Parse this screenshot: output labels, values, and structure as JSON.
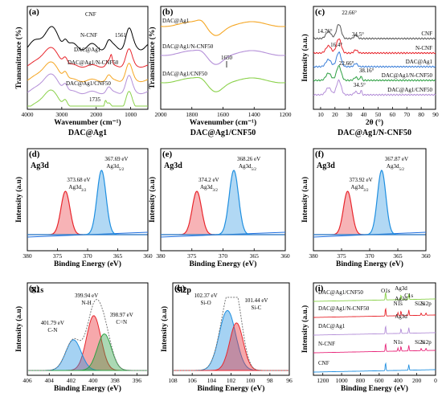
{
  "chart_data": [
    {
      "panel": "(a)",
      "type": "line",
      "title": "DAC@Ag1",
      "xlabel": "Wavenumber (cm⁻¹)",
      "ylabel": "Transmittance (%)",
      "xlim": [
        4000,
        500
      ],
      "x_ticks": [
        "4000",
        "3000",
        "2000",
        "1000"
      ],
      "series": [
        {
          "name": "CNF",
          "color": "#000000"
        },
        {
          "name": "N-CNF",
          "color": "#e8262d"
        },
        {
          "name": "DAC@Ag1",
          "color": "#f5a623"
        },
        {
          "name": "DAC@Ag1/N-CNF50",
          "color": "#b48fd8"
        },
        {
          "name": "DAC@Ag1/CNF50",
          "color": "#8ad14a"
        }
      ],
      "annotations": [
        "1561",
        "1735"
      ]
    },
    {
      "panel": "(b)",
      "type": "line",
      "title": "DAC@Ag1/CNF50",
      "xlabel": "Wavenumber (cm⁻¹)",
      "ylabel": "Transmittance (%)",
      "xlim": [
        2000,
        1200
      ],
      "x_ticks": [
        "2000",
        "1800",
        "1600",
        "1400",
        "1200"
      ],
      "series": [
        {
          "name": "DAC@Ag1",
          "color": "#f5a623"
        },
        {
          "name": "DAC@Ag1/N-CNF50",
          "color": "#b48fd8"
        },
        {
          "name": "DAC@Ag1/CNF50",
          "color": "#8ad14a"
        }
      ],
      "annotations": [
        "1650"
      ]
    },
    {
      "panel": "(c)",
      "type": "line",
      "title": "DAC@Ag1/N-CNF50",
      "xlabel": "2θ (°)",
      "ylabel": "Intensity (a.u.)",
      "xlim": [
        5,
        90
      ],
      "x_ticks": [
        "10",
        "20",
        "30",
        "40",
        "50",
        "60",
        "70",
        "80",
        "90"
      ],
      "series": [
        {
          "name": "CNF",
          "color": "#555555"
        },
        {
          "name": "N-CNF",
          "color": "#e8262d"
        },
        {
          "name": "DAC@Ag1",
          "color": "#3b7fd9"
        },
        {
          "name": "DAC@Ag1/N-CNF50",
          "color": "#2ea043"
        },
        {
          "name": "DAC@Ag1/CNF50",
          "color": "#b48fd8"
        }
      ],
      "annotations": [
        "22.66°",
        "14.76°",
        "34.5°",
        "16.4°",
        "22.66°",
        "38.16°",
        "34.5°"
      ]
    },
    {
      "panel": "(d)",
      "type": "line",
      "title": "Ag3d",
      "xlabel": "Binding Energy (eV)",
      "ylabel": "Intensity (a.u)",
      "xlim": [
        380,
        360
      ],
      "x_ticks": [
        "380",
        "375",
        "370",
        "365",
        "360"
      ],
      "peaks": [
        {
          "label": "373.68 eV",
          "name": "Ag3d",
          "sub": "3/2",
          "center": 373.68,
          "color": "#e8262d"
        },
        {
          "label": "367.69 eV",
          "name": "Ag3d",
          "sub": "5/2",
          "center": 367.69,
          "color": "#1f8fe0"
        }
      ]
    },
    {
      "panel": "(e)",
      "type": "line",
      "title": "Ag3d",
      "xlabel": "Binding Energy (eV)",
      "ylabel": "Intensity (a.u)",
      "xlim": [
        380,
        360
      ],
      "x_ticks": [
        "380",
        "375",
        "370",
        "365",
        "360"
      ],
      "peaks": [
        {
          "label": "374.2 eV",
          "name": "Ag3d",
          "sub": "3/2",
          "center": 374.2,
          "color": "#e8262d"
        },
        {
          "label": "368.26 eV",
          "name": "Ag3d",
          "sub": "5/2",
          "center": 368.26,
          "color": "#1f8fe0"
        }
      ]
    },
    {
      "panel": "(f)",
      "type": "line",
      "title": "Ag3d",
      "xlabel": "Binding Energy (eV)",
      "ylabel": "Intensity (a.u)",
      "xlim": [
        380,
        360
      ],
      "x_ticks": [
        "380",
        "375",
        "370",
        "365",
        "360"
      ],
      "peaks": [
        {
          "label": "373.92 eV",
          "name": "Ag3d",
          "sub": "3/2",
          "center": 373.92,
          "color": "#e8262d"
        },
        {
          "label": "367.87 eV",
          "name": "Ag3d",
          "sub": "5/2",
          "center": 367.87,
          "color": "#1f8fe0"
        }
      ]
    },
    {
      "panel": "(g)",
      "type": "line",
      "title": "N1s",
      "xlabel": "Binding Energy (eV)",
      "ylabel": "Intensity (a.u)",
      "xlim": [
        406,
        395
      ],
      "x_ticks": [
        "406",
        "404",
        "402",
        "400",
        "398",
        "396"
      ],
      "peaks": [
        {
          "label": "399.94 eV",
          "name": "N-H",
          "center": 399.94,
          "color": "#e8262d"
        },
        {
          "label": "401.79 eV",
          "name": "C-N",
          "center": 401.79,
          "color": "#1f8fe0"
        },
        {
          "label": "398.97 eV",
          "name": "C=N",
          "center": 398.97,
          "color": "#2ea043"
        }
      ]
    },
    {
      "panel": "(h)",
      "type": "line",
      "title": "Si2p",
      "xlabel": "Binding Energy (eV)",
      "ylabel": "Intensity (a.u)",
      "xlim": [
        108,
        96
      ],
      "x_ticks": [
        "108",
        "106",
        "104",
        "102",
        "100",
        "98",
        "96"
      ],
      "peaks": [
        {
          "label": "102.37 eV",
          "name": "Si-O",
          "center": 102.37,
          "color": "#1f8fe0"
        },
        {
          "label": "101.44 eV",
          "name": "Si-C",
          "center": 101.44,
          "color": "#e8262d"
        }
      ]
    },
    {
      "panel": "(i)",
      "type": "line",
      "title": "",
      "xlabel": "Binding Energy (eV)",
      "ylabel": "Intensity (a.u.)",
      "xlim": [
        1300,
        0
      ],
      "x_ticks": [
        "1200",
        "1000",
        "800",
        "600",
        "400",
        "200",
        "0"
      ],
      "series": [
        {
          "name": "DAC@Ag1/CNF50",
          "color": "#8ad14a"
        },
        {
          "name": "DAC@Ag1/N-CNF50",
          "color": "#e8262d"
        },
        {
          "name": "DAC@Ag1",
          "color": "#b48fd8"
        },
        {
          "name": "N-CNF",
          "color": "#e8267a"
        },
        {
          "name": "CNF",
          "color": "#1f8fe0"
        }
      ],
      "annotations": [
        "O1s",
        "Ag3d",
        "C1s",
        "N1s",
        "Ag3d",
        "Si2s",
        "Si2p",
        "Ag3d",
        "N1s",
        "Si2s",
        "Si2p"
      ]
    }
  ]
}
